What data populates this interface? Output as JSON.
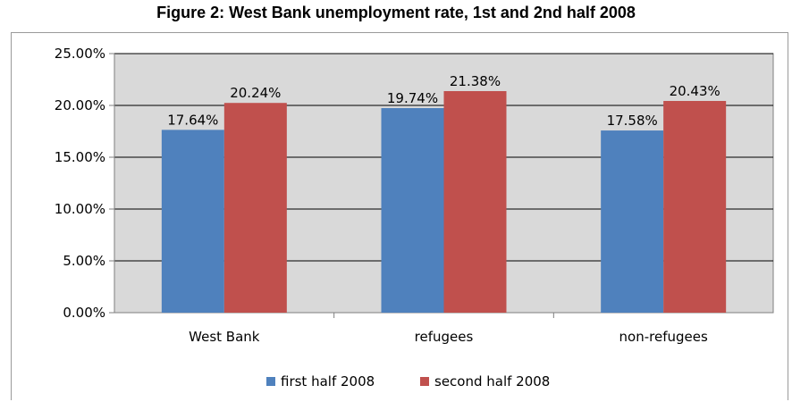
{
  "chart_data": {
    "type": "bar",
    "title": "Figure 2: West Bank unemployment rate, 1st and 2nd half 2008",
    "categories": [
      "West Bank",
      "refugees",
      "non-refugees"
    ],
    "series": [
      {
        "name": "first half 2008",
        "values": [
          17.64,
          19.74,
          17.58
        ],
        "labels": [
          "17.64%",
          "19.74%",
          "17.58%"
        ],
        "color": "#4F81BD"
      },
      {
        "name": "second half 2008",
        "values": [
          20.24,
          21.38,
          20.43
        ],
        "labels": [
          "20.24%",
          "21.38%",
          "20.43%"
        ],
        "color": "#C0504D"
      }
    ],
    "ylim": [
      0,
      25
    ],
    "yticks": [
      0,
      5,
      10,
      15,
      20,
      25
    ],
    "ytick_labels": [
      "0.00%",
      "5.00%",
      "10.00%",
      "15.00%",
      "20.00%",
      "25.00%"
    ],
    "xlabel": "",
    "ylabel": "",
    "grid": true,
    "legend_position": "bottom",
    "plot_background": "#D9D9D9",
    "gridline_color": "#000000"
  }
}
